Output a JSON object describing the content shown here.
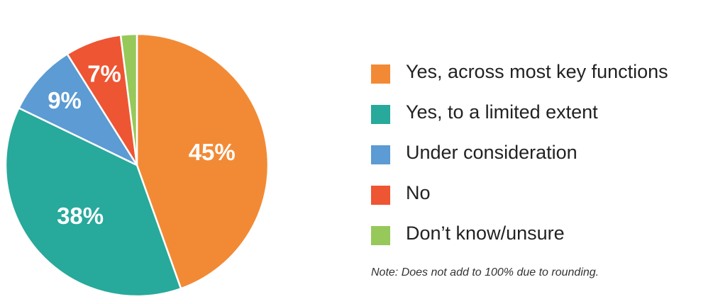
{
  "chart_data": {
    "type": "pie",
    "slices": [
      {
        "label": "Yes, across most key functions",
        "value": 45,
        "display": "45%",
        "color": "#F28A35"
      },
      {
        "label": "Yes, to a limited extent",
        "value": 38,
        "display": "38%",
        "color": "#27A99B"
      },
      {
        "label": "Under consideration",
        "value": 9,
        "display": "9%",
        "color": "#5C9BD3"
      },
      {
        "label": "No",
        "value": 7,
        "display": "7%",
        "color": "#EE5533"
      },
      {
        "label": "Don’t know/unsure",
        "value": 2,
        "display": "2%",
        "color": "#96C95A"
      }
    ],
    "legend_placement": "right",
    "note": "Note: Does not add to 100% due to rounding."
  }
}
